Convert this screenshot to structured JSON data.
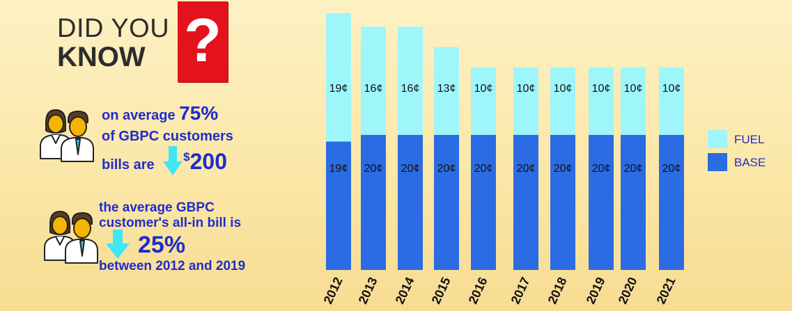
{
  "header": {
    "line1": "DID YOU",
    "line2": "KNOW",
    "question_mark": "?"
  },
  "fact1": {
    "line1_prefix": "on average ",
    "line1_pct": "75%",
    "line2": "of GBPC customers",
    "line3_prefix": "bills are ",
    "dollar_sign": "$",
    "amount": "200"
  },
  "fact2": {
    "line1": "the average GBPC",
    "line2": "customer's all-in bill is",
    "pct": "25%",
    "line4": "between 2012 and 2019"
  },
  "chart_data": {
    "type": "bar",
    "stacked": true,
    "categories": [
      "2012",
      "2013",
      "2014",
      "2015",
      "2016",
      "2017",
      "2018",
      "2019",
      "2020",
      "2021"
    ],
    "series": [
      {
        "name": "BASE",
        "color": "#2b6be3",
        "values": [
          19,
          20,
          20,
          20,
          20,
          20,
          20,
          20,
          20,
          20
        ],
        "labels": [
          "19¢",
          "20¢",
          "20¢",
          "20¢",
          "20¢",
          "20¢",
          "20¢",
          "20¢",
          "20¢",
          "20¢"
        ]
      },
      {
        "name": "FUEL",
        "color": "#9ef6fb",
        "values": [
          19,
          16,
          16,
          13,
          10,
          10,
          10,
          10,
          10,
          10
        ],
        "labels": [
          "19¢",
          "16¢",
          "16¢",
          "13¢",
          "10¢",
          "10¢",
          "10¢",
          "10¢",
          "10¢",
          "10¢"
        ]
      }
    ],
    "ylim": [
      0,
      38
    ],
    "legend_position": "right",
    "grid": false
  },
  "colors": {
    "title_dark": "#2d2d2d",
    "accent_blue": "#1f2ccc",
    "question_red": "#e3121b",
    "arrow_cyan": "#3ee6f6"
  },
  "icons": [
    "people-icon",
    "down-arrow-icon"
  ]
}
